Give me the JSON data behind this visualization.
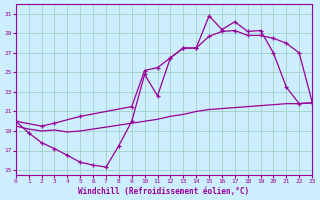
{
  "xlabel": "Windchill (Refroidissement éolien,°C)",
  "bg_color": "#cceeff",
  "line_color": "#990099",
  "grid_color": "#99ccbb",
  "xlim": [
    0,
    23
  ],
  "ylim": [
    14.5,
    32
  ],
  "yticks": [
    15,
    17,
    19,
    21,
    23,
    25,
    27,
    29,
    31
  ],
  "xticks": [
    0,
    1,
    2,
    3,
    4,
    5,
    6,
    7,
    8,
    9,
    10,
    11,
    12,
    13,
    14,
    15,
    16,
    17,
    18,
    19,
    20,
    21,
    22,
    23
  ],
  "line1_x": [
    0,
    1,
    2,
    3,
    4,
    5,
    6,
    7,
    8,
    9,
    10,
    11,
    12,
    13,
    14,
    15,
    16,
    17,
    18,
    19,
    20,
    21,
    22,
    23
  ],
  "line1_y": [
    20.0,
    18.8,
    17.8,
    17.2,
    16.5,
    15.8,
    15.5,
    15.3,
    17.5,
    20.0,
    24.8,
    22.6,
    26.5,
    27.5,
    27.5,
    30.8,
    29.4,
    30.2,
    29.2,
    29.3,
    27.0,
    23.5,
    21.8,
    21.9
  ],
  "line2_x": [
    0,
    2,
    3,
    5,
    9,
    10,
    11,
    12,
    13,
    14,
    15,
    16,
    17,
    18,
    19,
    20,
    21,
    22,
    23
  ],
  "line2_y": [
    20.0,
    19.5,
    19.8,
    20.5,
    21.5,
    25.2,
    25.5,
    26.5,
    27.5,
    27.5,
    28.7,
    29.2,
    29.3,
    28.8,
    28.8,
    28.5,
    28.0,
    27.0,
    22.0
  ],
  "line3_x": [
    0,
    1,
    2,
    3,
    4,
    5,
    6,
    7,
    8,
    9,
    10,
    11,
    12,
    13,
    14,
    15,
    16,
    17,
    18,
    19,
    20,
    21,
    22,
    23
  ],
  "line3_y": [
    19.5,
    19.2,
    19.0,
    19.1,
    18.9,
    19.0,
    19.2,
    19.4,
    19.6,
    19.8,
    20.0,
    20.2,
    20.5,
    20.7,
    21.0,
    21.2,
    21.3,
    21.4,
    21.5,
    21.6,
    21.7,
    21.8,
    21.8,
    21.9
  ]
}
